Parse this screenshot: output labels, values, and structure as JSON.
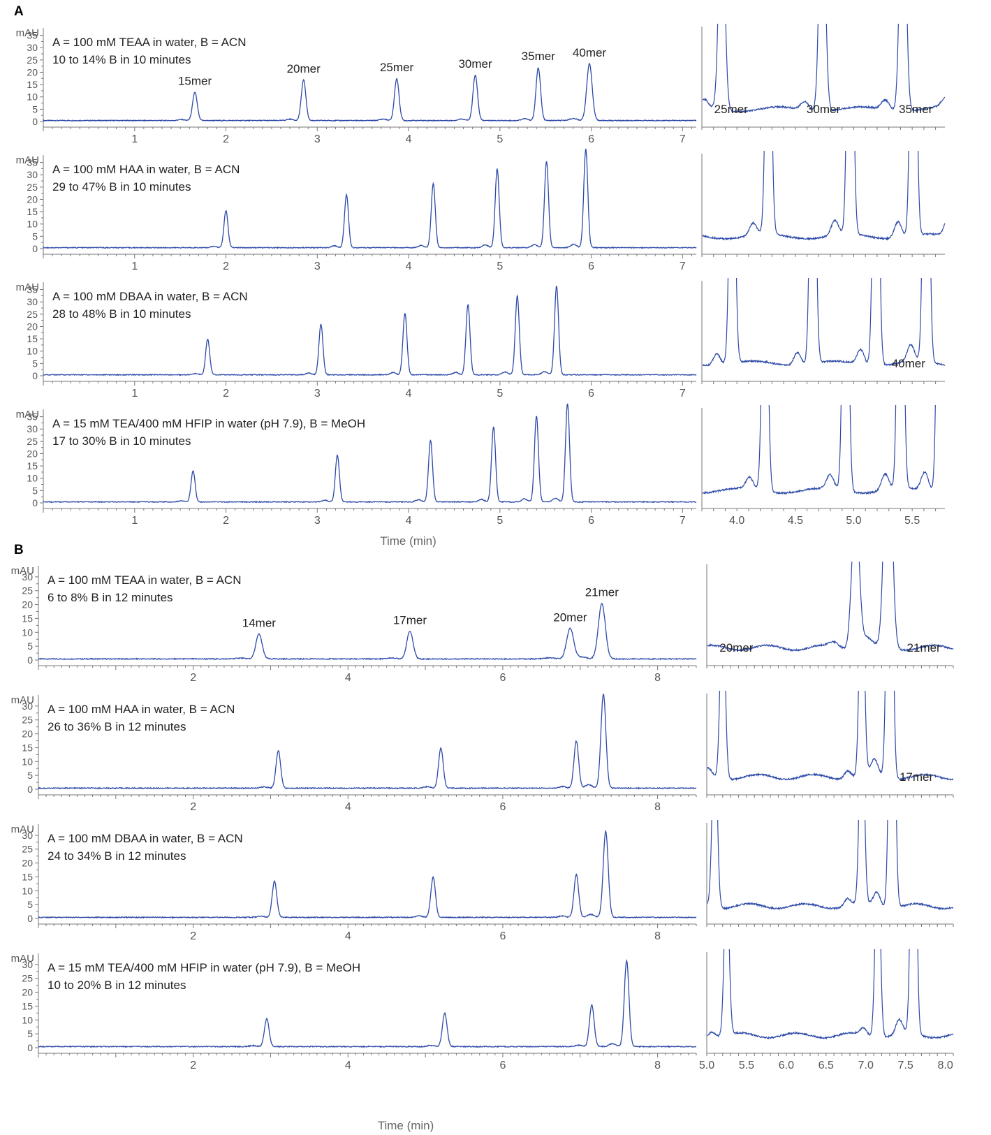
{
  "chart_data": {
    "type": "line",
    "x_unit_label": "Time (min)",
    "y_unit_label": "mAU",
    "line_color": "#2d4aa8",
    "axis_color": "#777777",
    "panels": [
      {
        "letter": "A",
        "x_title": "Time (min)",
        "xlim": [
          0,
          7.15
        ],
        "xticks": [
          1,
          2,
          3,
          4,
          5,
          6,
          7
        ],
        "ylim": [
          0,
          38
        ],
        "yticks": [
          0,
          5,
          10,
          15,
          20,
          25,
          30,
          35
        ],
        "zoom_xlim": [
          3.7,
          5.78
        ],
        "zoom_xticks": [
          4.0,
          4.5,
          5.0,
          5.5
        ],
        "zoom_xtick_labels": [
          "4.0",
          "4.5",
          "5.0",
          "5.5"
        ],
        "traces": [
          {
            "conditions": [
              "A = 100 mM TEAA in water, B = ACN",
              "10 to 14% B in 10 minutes"
            ],
            "peaks": [
              [
                1.66,
                11.5,
                0.025
              ],
              [
                2.85,
                16.5,
                0.025
              ],
              [
                3.87,
                17,
                0.025
              ],
              [
                4.73,
                18.5,
                0.025
              ],
              [
                5.42,
                21.5,
                0.025
              ],
              [
                5.98,
                23,
                0.03
              ]
            ],
            "peak_labels": [
              {
                "text": "15mer",
                "x": 1.66,
                "y": 11.5
              },
              {
                "text": "20mer",
                "x": 2.85,
                "y": 16.5
              },
              {
                "text": "25mer",
                "x": 3.87,
                "y": 17
              },
              {
                "text": "30mer",
                "x": 4.73,
                "y": 18.5
              },
              {
                "text": "35mer",
                "x": 5.42,
                "y": 21.5
              },
              {
                "text": "40mer",
                "x": 5.98,
                "y": 23
              }
            ],
            "zoom_labels": [
              "25mer",
              "30mer",
              "35mer"
            ]
          },
          {
            "conditions": [
              "A = 100 mM HAA in water, B = ACN",
              "29 to 47% B in 10 minutes"
            ],
            "peaks": [
              [
                2.0,
                15,
                0.022
              ],
              [
                3.32,
                21.5,
                0.022
              ],
              [
                4.27,
                26,
                0.022
              ],
              [
                4.97,
                32,
                0.022
              ],
              [
                5.51,
                35,
                0.022
              ],
              [
                5.94,
                40,
                0.022
              ]
            ],
            "peak_labels": [],
            "zoom_labels": []
          },
          {
            "conditions": [
              "A = 100 mM DBAA in water, B = ACN",
              "28 to 48% B in 10 minutes"
            ],
            "peaks": [
              [
                1.8,
                14.5,
                0.022
              ],
              [
                3.04,
                20.5,
                0.022
              ],
              [
                3.96,
                25,
                0.022
              ],
              [
                4.65,
                28.5,
                0.022
              ],
              [
                5.19,
                32,
                0.022
              ],
              [
                5.62,
                36,
                0.022
              ]
            ],
            "peak_labels": [],
            "zoom_labels": [
              "40mer"
            ]
          },
          {
            "conditions": [
              "A = 15 mM TEA/400 mM HFIP in water (pH 7.9), B = MeOH",
              "17 to 30% B in 10 minutes"
            ],
            "peaks": [
              [
                1.64,
                12.5,
                0.022
              ],
              [
                3.22,
                19,
                0.022
              ],
              [
                4.24,
                25,
                0.022
              ],
              [
                4.93,
                30.5,
                0.022
              ],
              [
                5.4,
                35,
                0.022
              ],
              [
                5.74,
                40,
                0.022
              ]
            ],
            "peak_labels": [],
            "zoom_labels": []
          }
        ]
      },
      {
        "letter": "B",
        "x_title": "Time (min)",
        "xlim": [
          0,
          8.5
        ],
        "xticks": [
          2,
          4,
          6,
          8
        ],
        "ylim": [
          0,
          34
        ],
        "yticks": [
          0,
          5,
          10,
          15,
          20,
          25,
          30
        ],
        "zoom_xlim": [
          5.0,
          8.1
        ],
        "zoom_xticks": [
          5.0,
          5.5,
          6.0,
          6.5,
          7.0,
          7.5,
          8.0
        ],
        "zoom_xtick_labels": [
          "5.0",
          "5.5",
          "6.0",
          "6.5",
          "7.0",
          "7.5",
          "8.0"
        ],
        "traces": [
          {
            "conditions": [
              "A = 100 mM TEAA in water, B = ACN",
              "6 to 8% B in 12 minutes"
            ],
            "peaks": [
              [
                2.85,
                9,
                0.04
              ],
              [
                4.8,
                10,
                0.04
              ],
              [
                6.87,
                11,
                0.045
              ],
              [
                7.28,
                20,
                0.045
              ]
            ],
            "peak_labels": [
              {
                "text": "14mer",
                "x": 2.85,
                "y": 9
              },
              {
                "text": "17mer",
                "x": 4.8,
                "y": 10
              },
              {
                "text": "20mer",
                "x": 6.87,
                "y": 11
              },
              {
                "text": "21mer",
                "x": 7.28,
                "y": 20
              }
            ],
            "zoom_labels": [
              "20mer",
              "21mer"
            ]
          },
          {
            "conditions": [
              "A = 100 mM HAA in water, B = ACN",
              "26 to 36% B in 12 minutes"
            ],
            "peaks": [
              [
                3.1,
                13.5,
                0.03
              ],
              [
                5.2,
                14.5,
                0.03
              ],
              [
                6.95,
                17,
                0.03
              ],
              [
                7.3,
                34,
                0.032
              ]
            ],
            "peak_labels": [],
            "zoom_labels": [
              "17mer"
            ]
          },
          {
            "conditions": [
              "A = 100 mM DBAA in water, B = ACN",
              "24 to 34% B in 12 minutes"
            ],
            "peaks": [
              [
                3.05,
                13,
                0.03
              ],
              [
                5.1,
                14.5,
                0.03
              ],
              [
                6.95,
                15.5,
                0.03
              ],
              [
                7.33,
                31,
                0.032
              ]
            ],
            "peak_labels": [],
            "zoom_labels": []
          },
          {
            "conditions": [
              "A = 15 mM TEA/400 mM HFIP in water (pH 7.9), B = MeOH",
              "10 to 20% B in 12 minutes"
            ],
            "peaks": [
              [
                2.95,
                10,
                0.03
              ],
              [
                5.25,
                12,
                0.03
              ],
              [
                7.15,
                15,
                0.03
              ],
              [
                7.6,
                31,
                0.03
              ]
            ],
            "peak_labels": [],
            "zoom_labels": []
          }
        ]
      }
    ]
  }
}
